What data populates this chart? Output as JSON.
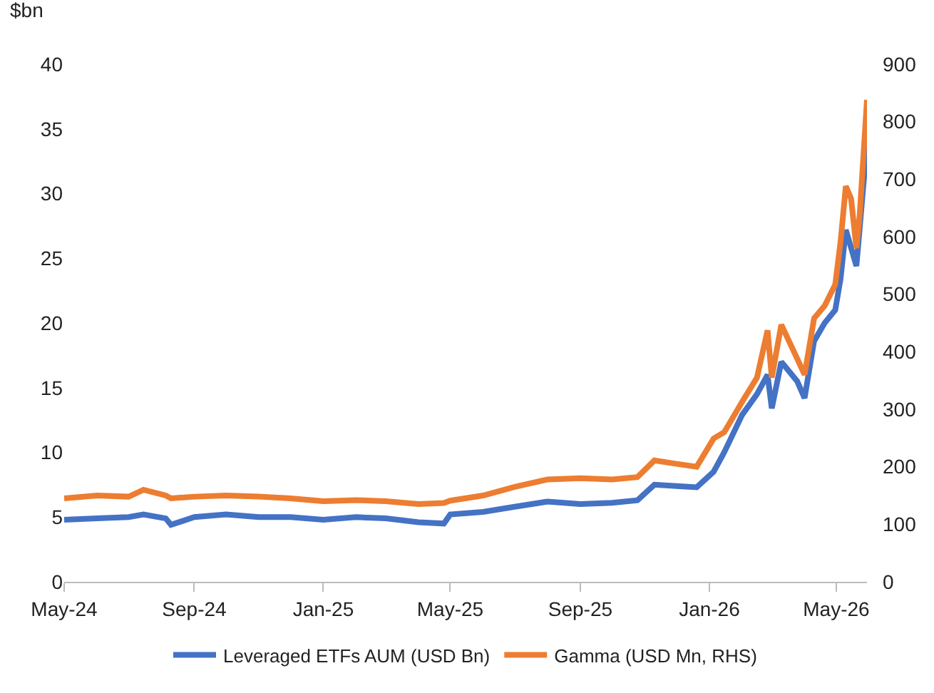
{
  "chart_data": {
    "type": "line",
    "ylabel": "$bn",
    "x": [
      "2024-05-01",
      "2024-06-01",
      "2024-07-01",
      "2024-07-15",
      "2024-08-05",
      "2024-08-10",
      "2024-09-01",
      "2024-10-01",
      "2024-11-01",
      "2024-12-01",
      "2025-01-01",
      "2025-02-01",
      "2025-03-01",
      "2025-04-01",
      "2025-04-25",
      "2025-05-01",
      "2025-06-01",
      "2025-07-01",
      "2025-08-01",
      "2025-09-01",
      "2025-10-01",
      "2025-10-25",
      "2025-11-10",
      "2025-12-01",
      "2025-12-20",
      "2026-01-05",
      "2026-01-15",
      "2026-02-01",
      "2026-02-15",
      "2026-02-25",
      "2026-03-01",
      "2026-03-10",
      "2026-03-25",
      "2026-04-01",
      "2026-04-10",
      "2026-04-20",
      "2026-04-30",
      "2026-05-05",
      "2026-05-10",
      "2026-05-15",
      "2026-05-20",
      "2026-05-23",
      "2026-05-30"
    ],
    "series": [
      {
        "name": "Leveraged ETFs AUM (USD Bn)",
        "color": "#4472c4",
        "values": [
          4.8,
          4.9,
          5.0,
          5.2,
          4.9,
          4.4,
          5.0,
          5.2,
          5.0,
          5.0,
          4.8,
          5.0,
          4.9,
          4.6,
          4.5,
          5.2,
          5.4,
          5.8,
          6.2,
          6.0,
          6.1,
          6.3,
          7.5,
          7.4,
          7.3,
          8.5,
          10.0,
          12.9,
          14.5,
          16.0,
          13.4,
          17.0,
          15.5,
          14.2,
          18.6,
          20.0,
          21.0,
          23.4,
          27.2,
          25.8,
          24.4,
          27.2,
          33.9
        ]
      },
      {
        "name": "Gamma (USD Mn, RHS)",
        "color": "#ed7d31",
        "axis": "y2",
        "values": [
          145,
          150,
          148,
          160,
          150,
          145,
          148,
          150,
          148,
          145,
          140,
          142,
          140,
          135,
          137,
          141,
          150,
          165,
          178,
          180,
          178,
          182,
          211,
          205,
          200,
          249,
          260,
          313,
          355,
          437,
          355,
          447,
          388,
          360,
          458,
          480,
          517,
          591,
          688,
          666,
          580,
          635,
          838
        ]
      }
    ],
    "xlim": [
      "2024-05-01",
      "2026-05-30"
    ],
    "xticks": [
      {
        "value": "2024-05-01",
        "label": "May-24"
      },
      {
        "value": "2024-09-01",
        "label": "Sep-24"
      },
      {
        "value": "2025-01-01",
        "label": "Jan-25"
      },
      {
        "value": "2025-05-01",
        "label": "May-25"
      },
      {
        "value": "2025-09-01",
        "label": "Sep-25"
      },
      {
        "value": "2026-01-01",
        "label": "Jan-26"
      },
      {
        "value": "2026-05-01",
        "label": "May-26"
      }
    ],
    "ylim": [
      0,
      40
    ],
    "yticks": [
      0,
      5,
      10,
      15,
      20,
      25,
      30,
      35,
      40
    ],
    "y2lim": [
      0,
      900
    ],
    "y2ticks": [
      0,
      100,
      200,
      300,
      400,
      500,
      600,
      700,
      800,
      900
    ],
    "legend": "bottom",
    "marker": "none",
    "line_style": "solid"
  }
}
